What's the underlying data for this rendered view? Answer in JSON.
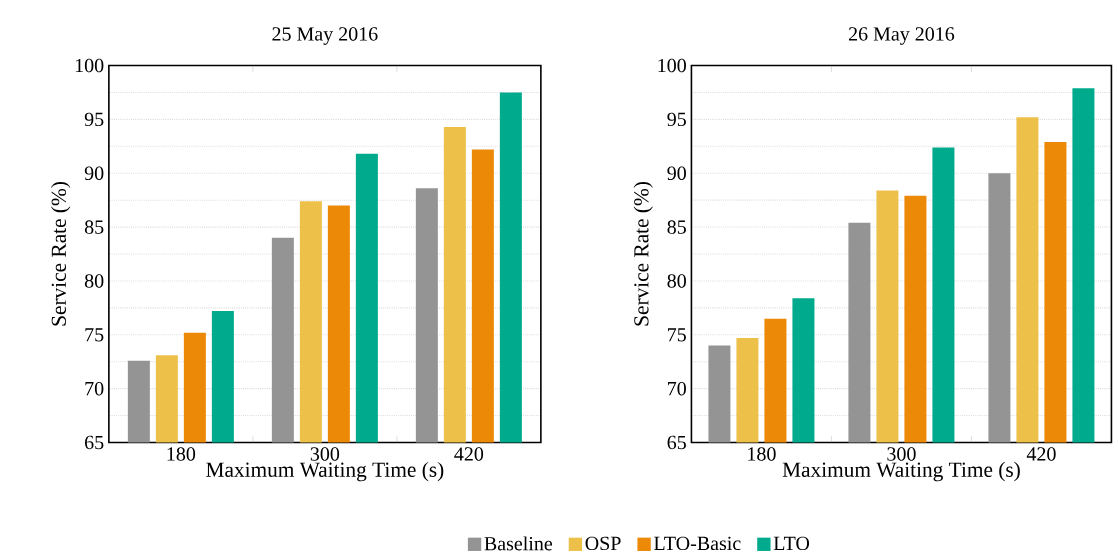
{
  "chart_data": [
    {
      "type": "bar",
      "title": "25 May 2016",
      "xlabel": "Maximum Waiting Time (s)",
      "ylabel": "Service Rate (%)",
      "categories": [
        "180",
        "300",
        "420"
      ],
      "series": [
        {
          "name": "Baseline",
          "color": "#949494",
          "values": [
            72.6,
            84.0,
            88.6
          ]
        },
        {
          "name": "OSP",
          "color": "#edc04a",
          "values": [
            73.1,
            87.4,
            94.3
          ]
        },
        {
          "name": "LTO-Basic",
          "color": "#ec8906",
          "values": [
            75.2,
            87.0,
            92.2
          ]
        },
        {
          "name": "LTO",
          "color": "#00aa8c",
          "values": [
            77.2,
            91.8,
            97.5
          ]
        }
      ],
      "ylim": [
        65,
        100
      ],
      "yticks": [
        65,
        70,
        75,
        80,
        85,
        90,
        95,
        100
      ],
      "grid": "y",
      "legend": "bottom"
    },
    {
      "type": "bar",
      "title": "26 May 2016",
      "xlabel": "Maximum Waiting Time (s)",
      "ylabel": "Service Rate (%)",
      "categories": [
        "180",
        "300",
        "420"
      ],
      "series": [
        {
          "color": "#949494",
          "values": [
            74.0,
            85.4,
            90.0
          ]
        },
        {
          "color": "#edc04a",
          "values": [
            74.7,
            88.4,
            95.2
          ]
        },
        {
          "color": "#ec8906",
          "values": [
            76.5,
            87.9,
            92.9
          ]
        },
        {
          "color": "#00aa8c",
          "values": [
            78.4,
            92.4,
            97.9
          ]
        }
      ],
      "ylim": [
        65,
        100
      ],
      "yticks": [
        65,
        70,
        75,
        80,
        85,
        90,
        95,
        100
      ],
      "grid": "y"
    }
  ]
}
